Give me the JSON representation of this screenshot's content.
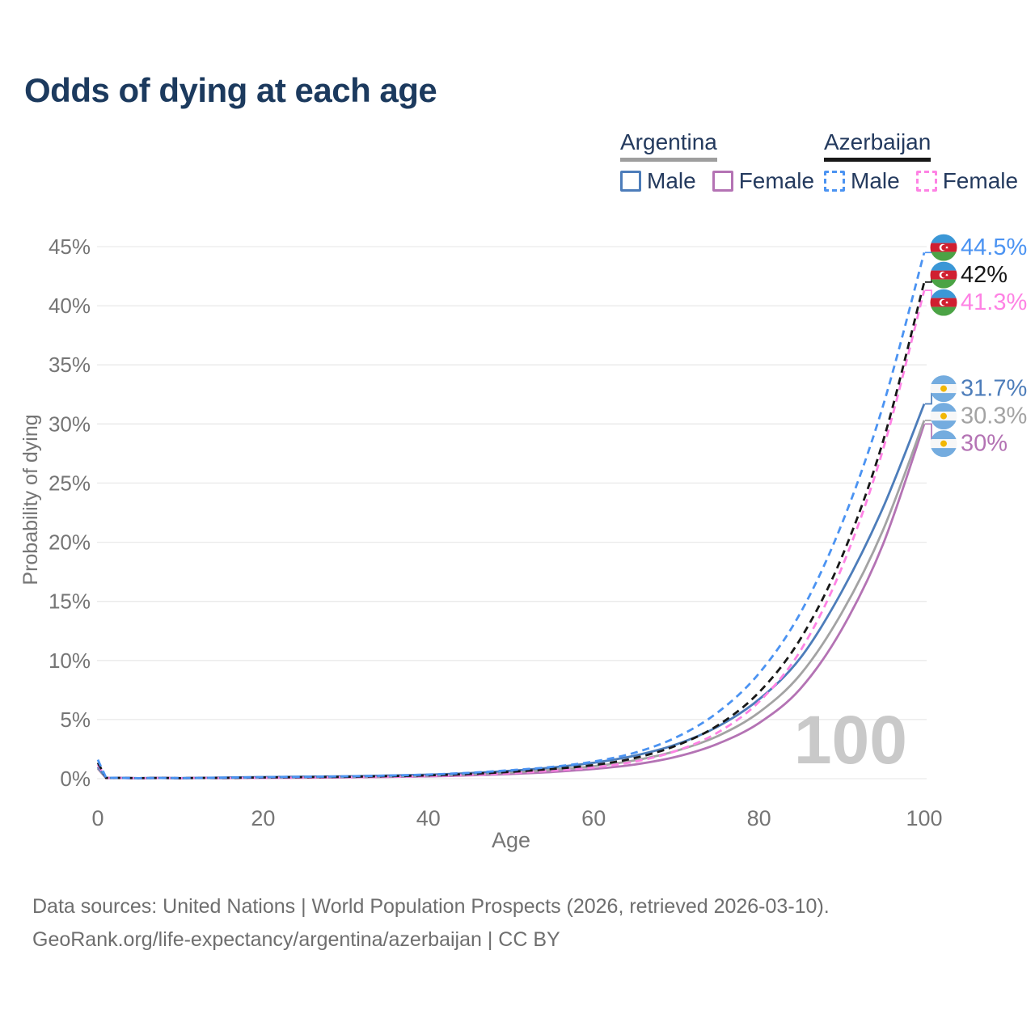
{
  "chart_data": {
    "type": "line",
    "title": "Odds of dying at each age",
    "xlabel": "Age",
    "ylabel": "Probability of dying",
    "xlim": [
      0,
      100
    ],
    "ylim": [
      0,
      45
    ],
    "x_ticks": [
      0,
      20,
      40,
      60,
      80,
      100
    ],
    "y_ticks": [
      0,
      5,
      10,
      15,
      20,
      25,
      30,
      35,
      40,
      45
    ],
    "y_tick_suffix": "%",
    "grid": "horizontal",
    "legend_position": "top-right",
    "watermark": "100",
    "ages": [
      0,
      1,
      5,
      10,
      15,
      20,
      25,
      30,
      35,
      40,
      45,
      50,
      55,
      60,
      65,
      70,
      75,
      80,
      85,
      90,
      95,
      100
    ],
    "series": [
      {
        "name": "Argentina Female",
        "country": "Argentina",
        "sex": "Female",
        "color": "#b473b4",
        "dashed": false,
        "flag": "argentina",
        "end_label": "30%",
        "end_value": 30,
        "values": [
          0.85,
          0.05,
          0.03,
          0.03,
          0.05,
          0.07,
          0.09,
          0.11,
          0.15,
          0.2,
          0.28,
          0.4,
          0.57,
          0.82,
          1.2,
          1.85,
          2.95,
          4.7,
          7.6,
          12.6,
          19.8,
          30
        ]
      },
      {
        "name": "Argentina Both sexes",
        "country": "Argentina",
        "sex": "Both sexes",
        "color": "#a3a3a3",
        "dashed": false,
        "flag": "argentina",
        "end_label": "30.3%",
        "end_value": 30.3,
        "values": [
          0.9,
          0.06,
          0.03,
          0.04,
          0.07,
          0.11,
          0.13,
          0.16,
          0.2,
          0.27,
          0.37,
          0.53,
          0.75,
          1.05,
          1.55,
          2.35,
          3.6,
          5.6,
          8.8,
          14,
          21,
          30.3
        ]
      },
      {
        "name": "Argentina Male",
        "country": "Argentina",
        "sex": "Male",
        "color": "#4d7dba",
        "dashed": false,
        "flag": "argentina",
        "end_label": "31.7%",
        "end_value": 31.7,
        "values": [
          1.0,
          0.07,
          0.04,
          0.05,
          0.09,
          0.14,
          0.17,
          0.2,
          0.26,
          0.34,
          0.47,
          0.67,
          0.95,
          1.35,
          1.95,
          2.9,
          4.4,
          6.7,
          10.2,
          15.8,
          22.9,
          31.7
        ]
      },
      {
        "name": "Azerbaijan Female",
        "country": "Azerbaijan",
        "sex": "Female",
        "color": "#fe82e4",
        "dashed": true,
        "flag": "azerbaijan",
        "end_label": "41.3%",
        "end_value": 41.3,
        "values": [
          1.2,
          0.06,
          0.03,
          0.04,
          0.05,
          0.07,
          0.09,
          0.12,
          0.16,
          0.22,
          0.32,
          0.47,
          0.68,
          0.95,
          1.45,
          2.35,
          3.9,
          6.5,
          10.8,
          17.8,
          27.8,
          41.3
        ]
      },
      {
        "name": "Azerbaijan Both sexes",
        "country": "Azerbaijan",
        "sex": "Both sexes",
        "color": "#181818",
        "dashed": true,
        "flag": "azerbaijan",
        "end_label": "42%",
        "end_value": 42,
        "values": [
          1.35,
          0.07,
          0.04,
          0.04,
          0.06,
          0.1,
          0.13,
          0.16,
          0.21,
          0.28,
          0.4,
          0.58,
          0.82,
          1.15,
          1.75,
          2.8,
          4.5,
          7.3,
          11.8,
          18.7,
          28.5,
          42
        ]
      },
      {
        "name": "Azerbaijan Male",
        "country": "Azerbaijan",
        "sex": "Male",
        "color": "#4b93f2",
        "dashed": true,
        "flag": "azerbaijan",
        "end_label": "44.5%",
        "end_value": 44.5,
        "values": [
          1.6,
          0.08,
          0.04,
          0.05,
          0.08,
          0.13,
          0.16,
          0.2,
          0.26,
          0.35,
          0.5,
          0.72,
          1.0,
          1.45,
          2.2,
          3.5,
          5.6,
          8.9,
          14,
          21.5,
          31.5,
          44.5
        ]
      }
    ]
  },
  "legend": {
    "groups": [
      {
        "country": "Argentina",
        "line_style": "solid",
        "underline_color": "#9e9e9e",
        "items": [
          {
            "label": "Male",
            "color": "#4d7dba"
          },
          {
            "label": "Female",
            "color": "#b473b4"
          }
        ]
      },
      {
        "country": "Azerbaijan",
        "line_style": "dashed",
        "underline_color": "#181818",
        "items": [
          {
            "label": "Male",
            "color": "#4b93f2"
          },
          {
            "label": "Female",
            "color": "#fe82e4"
          }
        ]
      }
    ]
  },
  "footer": {
    "line1": "Data sources: United Nations | World Population Prospects (2026, retrieved 2026-03-10).",
    "line2": "GeoRank.org/life-expectancy/argentina/azerbaijan | CC BY"
  }
}
